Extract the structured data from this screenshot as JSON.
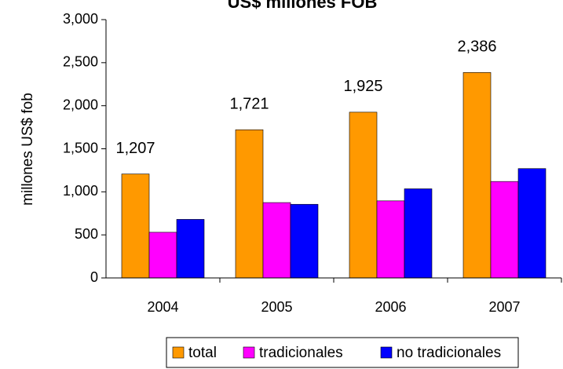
{
  "chart_data": {
    "type": "bar",
    "title": "US$ millones FOB",
    "y_label": "millones US$ fob",
    "categories": [
      "2004",
      "2005",
      "2006",
      "2007"
    ],
    "series": [
      {
        "name": "total",
        "color": "#ff9900",
        "values": [
          1207,
          1721,
          1925,
          2386
        ],
        "value_labels": [
          "1,207",
          "1,721",
          "1,925",
          "2,386"
        ]
      },
      {
        "name": "tradicionales",
        "color": "#ff00ff",
        "values": [
          530,
          875,
          895,
          1120
        ]
      },
      {
        "name": "no tradicionales",
        "color": "#0000ff",
        "values": [
          680,
          855,
          1035,
          1270
        ]
      }
    ],
    "ylim": [
      0,
      3000
    ],
    "yticks": [
      0,
      500,
      {
        "value": 1000,
        "label": "1,000"
      },
      {
        "value": 1500,
        "label": "1,500"
      },
      {
        "value": 2000,
        "label": "2,000"
      },
      {
        "value": 2500,
        "label": "2,500"
      },
      {
        "value": 3000,
        "label": "3,000"
      }
    ],
    "grid": false,
    "legend": "bottom"
  }
}
